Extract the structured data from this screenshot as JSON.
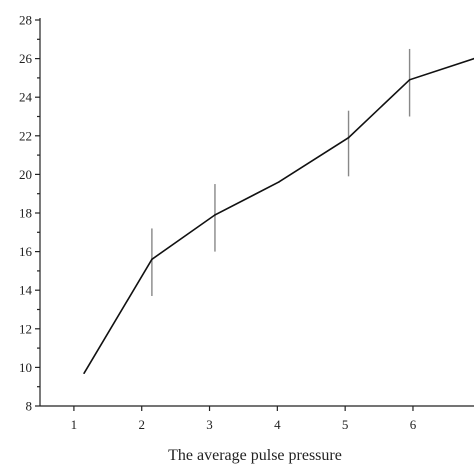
{
  "chart_data": {
    "type": "line",
    "title": "",
    "xlabel": "The average pulse pressure",
    "ylabel": "",
    "xlim": [
      0.5,
      6.9
    ],
    "ylim": [
      8,
      28
    ],
    "x_ticks": [
      1,
      2,
      3,
      4,
      5,
      6
    ],
    "y_ticks": [
      8,
      10,
      12,
      14,
      16,
      18,
      20,
      22,
      24,
      26,
      28
    ],
    "grid": false,
    "series": [
      {
        "x": [
          1.15,
          2.15,
          3.08,
          4.02,
          5.05,
          5.95,
          6.9
        ],
        "y": [
          9.7,
          15.6,
          17.9,
          19.6,
          21.9,
          24.9,
          26.0
        ]
      }
    ],
    "error_bars": [
      {
        "x": 2.15,
        "low": 13.7,
        "high": 17.2
      },
      {
        "x": 3.08,
        "low": 16.0,
        "high": 19.5
      },
      {
        "x": 5.05,
        "low": 19.9,
        "high": 23.3
      },
      {
        "x": 5.95,
        "low": 23.0,
        "high": 26.5
      }
    ]
  }
}
